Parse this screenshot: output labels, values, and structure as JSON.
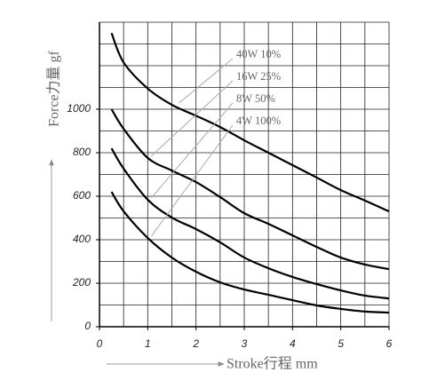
{
  "chart_data": {
    "type": "line",
    "x_label": "Stroke行程 mm",
    "y_label": "Force力量 gf",
    "x": [
      0.25,
      0.5,
      1,
      1.5,
      2,
      2.5,
      3,
      3.5,
      4,
      4.5,
      5,
      5.5,
      6
    ],
    "series": [
      {
        "name": "40W 10%",
        "color": "#000000",
        "values": [
          1350,
          1215,
          1095,
          1020,
          970,
          918,
          857,
          800,
          743,
          686,
          628,
          580,
          530
        ]
      },
      {
        "name": "16W 25%",
        "color": "#000000",
        "values": [
          1000,
          910,
          776,
          718,
          665,
          596,
          522,
          473,
          420,
          367,
          318,
          286,
          265
        ]
      },
      {
        "name": "8W 50%",
        "color": "#000000",
        "values": [
          820,
          727,
          584,
          502,
          449,
          388,
          318,
          269,
          229,
          196,
          167,
          143,
          130
        ]
      },
      {
        "name": "4W 100%",
        "color": "#000000",
        "values": [
          620,
          531,
          408,
          318,
          253,
          204,
          171,
          147,
          122,
          98,
          82,
          70,
          65
        ]
      }
    ],
    "xlim": [
      0,
      6
    ],
    "xticks": [
      0,
      1,
      2,
      3,
      4,
      5,
      6
    ],
    "ylim": [
      0,
      1400
    ],
    "yticks": [
      0,
      200,
      400,
      600,
      800,
      1000
    ],
    "xgrid": [
      0.5,
      1,
      1.5,
      2,
      2.5,
      3,
      3.5,
      4,
      4.5,
      5,
      5.5,
      6
    ],
    "ygrid": [
      100,
      200,
      300,
      400,
      500,
      600,
      700,
      800,
      900,
      1000,
      1100,
      1200,
      1300,
      1400
    ],
    "grid": true
  }
}
